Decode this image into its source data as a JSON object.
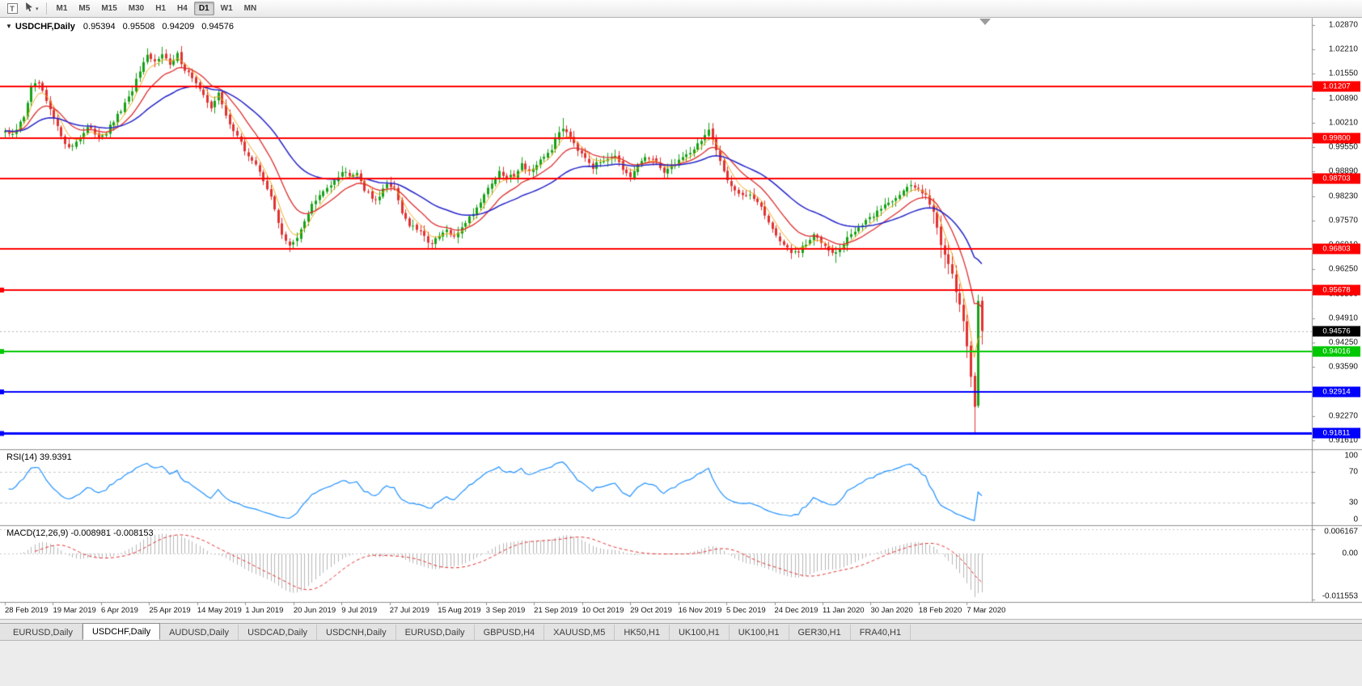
{
  "toolbar": {
    "template_glyph": "T",
    "cursor_caret_glyph": "▾",
    "timeframes": [
      "M1",
      "M5",
      "M15",
      "M30",
      "H1",
      "H4",
      "D1",
      "W1",
      "MN"
    ],
    "active_timeframe": "D1"
  },
  "chart": {
    "title": {
      "dropdown_glyph": "▼",
      "symbol": "USDCHF,Daily",
      "open": "0.95394",
      "high": "0.95508",
      "low": "0.94209",
      "close": "0.94576"
    }
  },
  "indicators": {
    "rsi_label": "RSI(14) 39.9391",
    "rsi_axis": [
      "100",
      "70",
      "30",
      "0"
    ],
    "macd_label": "MACD(12,26,9) -0.008981 -0.008153",
    "macd_axis": [
      "0.006167",
      "0.00",
      "-0.011553"
    ]
  },
  "tabs": {
    "items": [
      "EURUSD,Daily",
      "USDCHF,Daily",
      "AUDUSD,Daily",
      "USDCAD,Daily",
      "USDCNH,Daily",
      "EURUSD,Daily",
      "GBPUSD,H4",
      "XAUUSD,M5",
      "HK50,H1",
      "UK100,H1",
      "UK100,H1",
      "GER30,H1",
      "FRA40,H1"
    ],
    "active_index": 1
  },
  "chart_data": {
    "type": "candlestick",
    "symbol": "USDCHF",
    "timeframe": "Daily",
    "n_candles": 262,
    "colors": {
      "up": "#16a216",
      "down": "#e03232",
      "background": "#ffffff"
    },
    "price_axis": {
      "top_value": 1.0287,
      "bottom_value": 0.9161,
      "labels": [
        "1.02870",
        "1.02210",
        "1.01550",
        "1.00890",
        "1.00210",
        "0.99550",
        "0.98890",
        "0.98230",
        "0.97570",
        "0.96910",
        "0.96250",
        "0.95590",
        "0.94910",
        "0.94250",
        "0.93590",
        "0.92930",
        "0.92270",
        "0.91610"
      ]
    },
    "date_axis": [
      "28 Feb 2019",
      "19 Mar 2019",
      "6 Apr 2019",
      "25 Apr 2019",
      "14 May 2019",
      "1 Jun 2019",
      "20 Jun 2019",
      "9 Jul 2019",
      "27 Jul 2019",
      "15 Aug 2019",
      "3 Sep 2019",
      "21 Sep 2019",
      "10 Oct 2019",
      "29 Oct 2019",
      "16 Nov 2019",
      "5 Dec 2019",
      "24 Dec 2019",
      "11 Jan 2020",
      "30 Jan 2020",
      "18 Feb 2020",
      "7 Mar 2020"
    ],
    "h_lines": [
      {
        "value": 1.01207,
        "label": "1.01207",
        "color": "#ff0000",
        "width": 2,
        "edge_marker": false
      },
      {
        "value": 0.998,
        "label": "0.99800",
        "color": "#ff0000",
        "width": 2,
        "edge_marker": false
      },
      {
        "value": 0.98703,
        "label": "0.98703",
        "color": "#ff0000",
        "width": 2,
        "edge_marker": false
      },
      {
        "value": 0.96803,
        "label": "0.96803",
        "color": "#ff0000",
        "width": 2,
        "edge_marker": false
      },
      {
        "value": 0.95678,
        "label": "0.95678",
        "color": "#ff0000",
        "width": 2,
        "edge_marker": true
      },
      {
        "value": 0.94016,
        "label": "0.94016",
        "color": "#00c800",
        "width": 2,
        "edge_marker": true
      },
      {
        "value": 0.92914,
        "label": "0.92914",
        "color": "#0000ff",
        "width": 2,
        "edge_marker": true
      },
      {
        "value": 0.91811,
        "label": "0.91811",
        "color": "#0000ff",
        "width": 3,
        "edge_marker": true
      }
    ],
    "current_price": {
      "value": 0.94576,
      "label": "0.94576",
      "tag_bg": "#000000"
    },
    "ma": [
      {
        "period": 5,
        "color": "#f2a81e",
        "width": 1
      },
      {
        "period": 13,
        "color": "#dd2c2c",
        "width": 1.3
      },
      {
        "period": 34,
        "color": "#2424c8",
        "width": 1.5
      }
    ],
    "rsi": {
      "period": 14,
      "value": 39.9391,
      "color": "#1e90ff",
      "levels": [
        70,
        30
      ]
    },
    "macd": {
      "fast": 12,
      "slow": 26,
      "signal": 9,
      "value": -0.008981,
      "signal_value": -0.008153,
      "hist_color": "#b6b6b6",
      "signal_color": "#e03030",
      "scale_top": 0.006167,
      "scale_bottom": -0.011553
    },
    "noise": 0.0013,
    "wick": 0.0013,
    "close_anchors": [
      [
        0,
        1.0
      ],
      [
        2,
        0.9985
      ],
      [
        5,
        1.004
      ],
      [
        7,
        1.0118
      ],
      [
        9,
        1.0128
      ],
      [
        11,
        1.0078
      ],
      [
        14,
        1.0008
      ],
      [
        17,
        0.9952
      ],
      [
        20,
        0.9982
      ],
      [
        22,
        1.0008
      ],
      [
        25,
        0.9986
      ],
      [
        27,
        0.9996
      ],
      [
        30,
        1.004
      ],
      [
        33,
        1.0088
      ],
      [
        36,
        1.016
      ],
      [
        38,
        1.02
      ],
      [
        40,
        1.0186
      ],
      [
        42,
        1.0214
      ],
      [
        44,
        1.0176
      ],
      [
        46,
        1.0206
      ],
      [
        48,
        1.0168
      ],
      [
        50,
        1.0146
      ],
      [
        53,
        1.0092
      ],
      [
        55,
        1.0066
      ],
      [
        57,
        1.01
      ],
      [
        59,
        1.004
      ],
      [
        62,
        0.9986
      ],
      [
        64,
        0.9946
      ],
      [
        66,
        0.992
      ],
      [
        68,
        0.989
      ],
      [
        70,
        0.9846
      ],
      [
        72,
        0.9786
      ],
      [
        74,
        0.9722
      ],
      [
        76,
        0.9686
      ],
      [
        78,
        0.9706
      ],
      [
        80,
        0.9756
      ],
      [
        82,
        0.98
      ],
      [
        84,
        0.9822
      ],
      [
        86,
        0.9846
      ],
      [
        88,
        0.987
      ],
      [
        90,
        0.989
      ],
      [
        92,
        0.9884
      ],
      [
        94,
        0.989
      ],
      [
        96,
        0.9842
      ],
      [
        98,
        0.9816
      ],
      [
        100,
        0.9822
      ],
      [
        102,
        0.9856
      ],
      [
        104,
        0.9848
      ],
      [
        106,
        0.978
      ],
      [
        108,
        0.9744
      ],
      [
        110,
        0.9732
      ],
      [
        112,
        0.9712
      ],
      [
        114,
        0.9694
      ],
      [
        116,
        0.9714
      ],
      [
        118,
        0.973
      ],
      [
        120,
        0.9708
      ],
      [
        122,
        0.9742
      ],
      [
        124,
        0.9766
      ],
      [
        126,
        0.9792
      ],
      [
        128,
        0.983
      ],
      [
        130,
        0.986
      ],
      [
        132,
        0.9886
      ],
      [
        134,
        0.9872
      ],
      [
        136,
        0.9882
      ],
      [
        138,
        0.991
      ],
      [
        140,
        0.9892
      ],
      [
        142,
        0.9902
      ],
      [
        144,
        0.993
      ],
      [
        146,
        0.9952
      ],
      [
        148,
        0.9996
      ],
      [
        149,
        1.001
      ],
      [
        151,
        0.9986
      ],
      [
        153,
        0.9952
      ],
      [
        155,
        0.9932
      ],
      [
        157,
        0.9902
      ],
      [
        159,
        0.9916
      ],
      [
        161,
        0.993
      ],
      [
        163,
        0.9936
      ],
      [
        165,
        0.9888
      ],
      [
        167,
        0.9872
      ],
      [
        169,
        0.9906
      ],
      [
        171,
        0.993
      ],
      [
        173,
        0.992
      ],
      [
        176,
        0.9892
      ],
      [
        178,
        0.9902
      ],
      [
        180,
        0.9922
      ],
      [
        182,
        0.9936
      ],
      [
        184,
        0.9952
      ],
      [
        186,
        0.9976
      ],
      [
        188,
        1.0002
      ],
      [
        190,
        0.9942
      ],
      [
        192,
        0.9892
      ],
      [
        194,
        0.9852
      ],
      [
        196,
        0.9832
      ],
      [
        198,
        0.9824
      ],
      [
        200,
        0.9818
      ],
      [
        202,
        0.9798
      ],
      [
        204,
        0.9752
      ],
      [
        206,
        0.9716
      ],
      [
        208,
        0.9692
      ],
      [
        210,
        0.9668
      ],
      [
        212,
        0.9672
      ],
      [
        214,
        0.9692
      ],
      [
        216,
        0.9716
      ],
      [
        218,
        0.9702
      ],
      [
        220,
        0.9682
      ],
      [
        222,
        0.9668
      ],
      [
        224,
        0.9692
      ],
      [
        226,
        0.9722
      ],
      [
        228,
        0.9738
      ],
      [
        230,
        0.9752
      ],
      [
        232,
        0.9772
      ],
      [
        234,
        0.9792
      ],
      [
        236,
        0.9806
      ],
      [
        238,
        0.9822
      ],
      [
        240,
        0.9838
      ],
      [
        242,
        0.985
      ],
      [
        244,
        0.9842
      ],
      [
        246,
        0.9832
      ],
      [
        248,
        0.9778
      ],
      [
        250,
        0.9694
      ],
      [
        252,
        0.9642
      ],
      [
        253,
        0.9618
      ],
      [
        254,
        0.9562
      ],
      [
        255,
        0.9524
      ],
      [
        256,
        0.9478
      ],
      [
        257,
        0.942
      ],
      [
        258,
        0.9332
      ],
      [
        259,
        0.9256
      ],
      [
        260,
        0.9539
      ],
      [
        261,
        0.94576
      ]
    ],
    "spikes": [
      {
        "i": 8,
        "high": 1.014
      },
      {
        "i": 38,
        "high": 1.0224
      },
      {
        "i": 42,
        "high": 1.0228
      },
      {
        "i": 76,
        "low": 0.9672
      },
      {
        "i": 114,
        "low": 0.9682
      },
      {
        "i": 149,
        "high": 1.0035
      },
      {
        "i": 188,
        "high": 1.0022
      },
      {
        "i": 222,
        "low": 0.9642
      },
      {
        "i": 259,
        "low": 0.91811
      },
      {
        "i": 260,
        "high": 0.9556
      }
    ],
    "last_candle": {
      "open": 0.95394,
      "high": 0.95508,
      "low": 0.94209,
      "close": 0.94576
    }
  }
}
